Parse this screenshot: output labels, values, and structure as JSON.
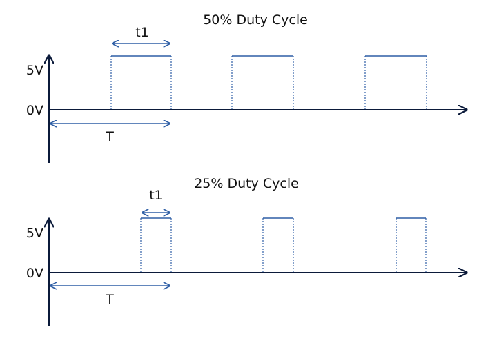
{
  "diagrams": [
    {
      "title": "50% Duty Cycle",
      "high_label": "5V",
      "low_label": "0V",
      "pulse_width_label": "t1",
      "period_label": "T",
      "duty_cycle_percent": 50
    },
    {
      "title": "25% Duty Cycle",
      "high_label": "5V",
      "low_label": "0V",
      "pulse_width_label": "t1",
      "period_label": "T",
      "duty_cycle_percent": 25
    }
  ],
  "colors": {
    "axis": "#0b1a3a",
    "waveform": "#2f5fa6",
    "text": "#111111"
  }
}
